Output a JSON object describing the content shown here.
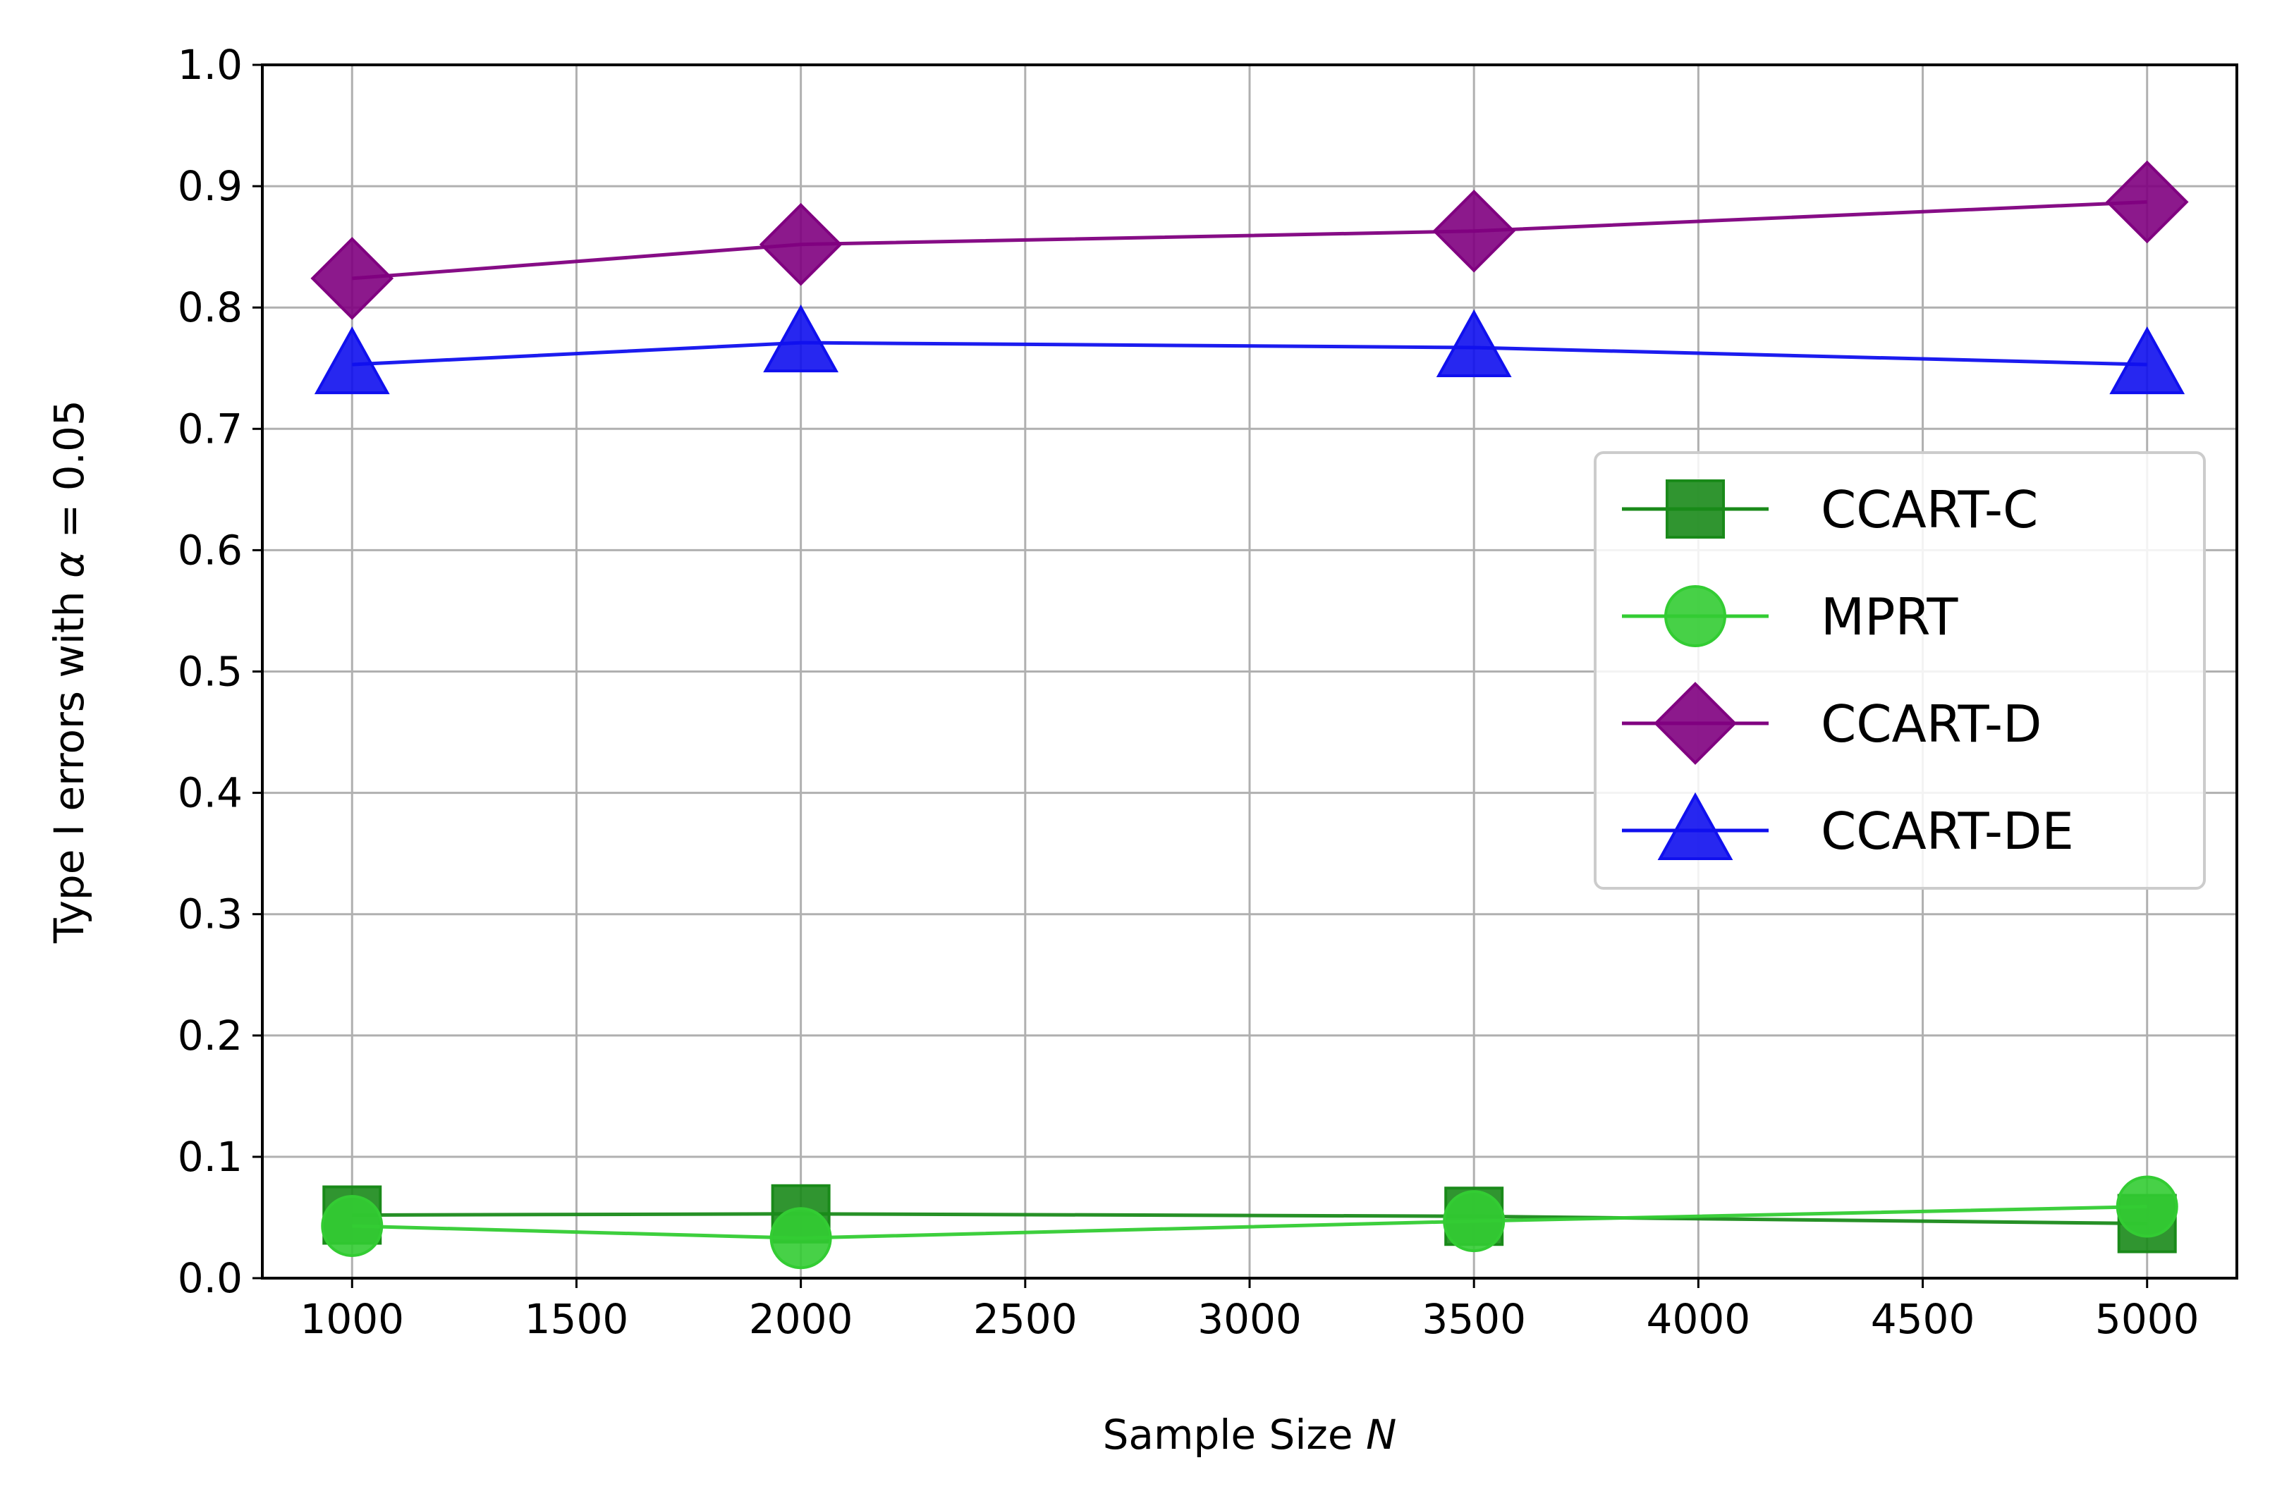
{
  "chart_data": {
    "type": "line",
    "title": "",
    "xlabel_prefix": "Sample Size ",
    "xlabel_var": "N",
    "ylabel_prefix": "Type I errors with ",
    "ylabel_var": "α",
    "ylabel_suffix": " = 0.05",
    "xlim": [
      800,
      5200
    ],
    "ylim": [
      0.0,
      1.0
    ],
    "xticks": [
      1000,
      1500,
      2000,
      2500,
      3000,
      3500,
      4000,
      4500,
      5000
    ],
    "yticks": [
      0.0,
      0.1,
      0.2,
      0.3,
      0.4,
      0.5,
      0.6,
      0.7,
      0.8,
      0.9,
      1.0
    ],
    "grid": true,
    "legend_position": "center-right",
    "x": [
      1000,
      2000,
      3500,
      5000
    ],
    "series": [
      {
        "name": "CCART-C",
        "values": [
          0.052,
          0.053,
          0.051,
          0.045
        ],
        "color": "#1a8a1a",
        "marker": "square"
      },
      {
        "name": "MPRT",
        "values": [
          0.043,
          0.033,
          0.047,
          0.059
        ],
        "color": "#33cc33",
        "marker": "circle"
      },
      {
        "name": "CCART-D",
        "values": [
          0.824,
          0.852,
          0.863,
          0.887
        ],
        "color": "#800080",
        "marker": "diamond"
      },
      {
        "name": "CCART-DE",
        "values": [
          0.753,
          0.771,
          0.767,
          0.753
        ],
        "color": "#1010ee",
        "marker": "triangle"
      }
    ]
  }
}
